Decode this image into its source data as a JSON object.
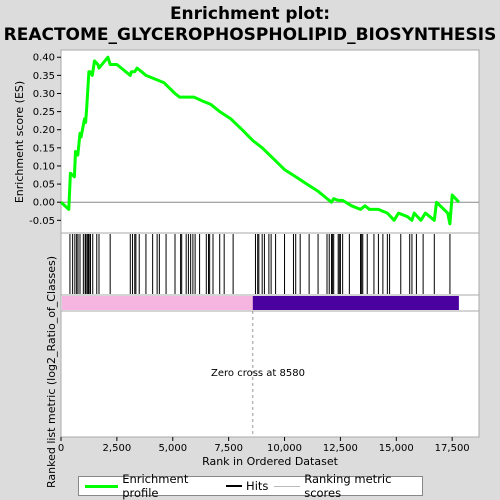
{
  "title_line1": "Enrichment plot:",
  "title_line2": "REACTOME_GLYCEROPHOSPHOLIPID_BIOSYNTHESIS",
  "zero_cross_label": "Zero cross at 8580",
  "colors": {
    "es_line": "#00ff00",
    "hits": "#000000",
    "pos_band": "#f5b5e0",
    "neg_band": "#4b00a0",
    "zero_line": "#808080",
    "background": "#ffffff",
    "page": "#dcdcdc"
  },
  "legend": {
    "enrichment_profile": "Enrichment profile",
    "hits": "Hits",
    "ranking_metric": "Ranking metric scores"
  },
  "chart_data": {
    "type": "line",
    "xlabel": "Rank in Ordered Dataset",
    "ylabel_top": "Enrichment score (ES)",
    "ylabel_bottom": "Ranked list metric (log2_Ratio_of_Classes)",
    "xlim": [
      0,
      18700
    ],
    "ylim": [
      -0.085,
      0.42
    ],
    "x_ticks": [
      0,
      2500,
      5000,
      7500,
      10000,
      12500,
      15000,
      17500
    ],
    "x_tick_labels": [
      "0",
      "2,500",
      "5,000",
      "7,500",
      "10,000",
      "12,500",
      "15,000",
      "17,500"
    ],
    "y_ticks": [
      -0.05,
      0.0,
      0.05,
      0.1,
      0.15,
      0.2,
      0.25,
      0.3,
      0.35,
      0.4
    ],
    "y_tick_labels": [
      "-0.05",
      "0.00",
      "0.05",
      "0.10",
      "0.15",
      "0.20",
      "0.25",
      "0.30",
      "0.35",
      "0.40"
    ],
    "zero_cross": 8580,
    "total_rank": 17800,
    "es_profile": {
      "x": [
        0,
        350,
        420,
        600,
        650,
        750,
        850,
        900,
        1050,
        1100,
        1150,
        1200,
        1250,
        1300,
        1400,
        1500,
        1650,
        1700,
        2100,
        2200,
        2500,
        3100,
        3150,
        3300,
        3400,
        3600,
        3800,
        4200,
        4600,
        5100,
        5300,
        5600,
        5800,
        5950,
        6300,
        6700,
        7100,
        7600,
        8100,
        8580,
        9000,
        9500,
        10000,
        10500,
        11000,
        11500,
        11900,
        12100,
        12200,
        12400,
        12600,
        13000,
        13400,
        13600,
        13800,
        14000,
        14200,
        14600,
        14900,
        15100,
        15500,
        15700,
        15800,
        16100,
        16300,
        16700,
        16800,
        17300,
        17400,
        17500,
        17800
      ],
      "y": [
        0.0,
        -0.02,
        0.08,
        0.07,
        0.14,
        0.13,
        0.19,
        0.18,
        0.23,
        0.22,
        0.26,
        0.31,
        0.36,
        0.36,
        0.35,
        0.39,
        0.38,
        0.37,
        0.4,
        0.38,
        0.38,
        0.35,
        0.36,
        0.36,
        0.37,
        0.36,
        0.35,
        0.34,
        0.33,
        0.3,
        0.29,
        0.29,
        0.29,
        0.29,
        0.28,
        0.27,
        0.25,
        0.23,
        0.2,
        0.17,
        0.15,
        0.12,
        0.09,
        0.07,
        0.05,
        0.03,
        0.01,
        0.0,
        0.01,
        0.005,
        0.005,
        -0.01,
        -0.02,
        -0.01,
        -0.02,
        -0.02,
        -0.02,
        -0.03,
        -0.05,
        -0.03,
        -0.04,
        -0.05,
        -0.03,
        -0.05,
        -0.03,
        -0.05,
        0.0,
        -0.03,
        -0.06,
        0.02,
        0.0
      ]
    },
    "hits": [
      400,
      520,
      620,
      700,
      760,
      850,
      1000,
      1080,
      1120,
      1180,
      1230,
      1260,
      1320,
      1420,
      1600,
      1700,
      2200,
      3100,
      3200,
      3300,
      3350,
      3500,
      3800,
      4100,
      4300,
      4400,
      4700,
      5100,
      5350,
      5400,
      5600,
      5700,
      5800,
      5900,
      6000,
      6200,
      6500,
      6600,
      6650,
      6800,
      7100,
      7300,
      7700,
      8700,
      8800,
      8850,
      9000,
      9100,
      9300,
      9400,
      9600,
      10000,
      10400,
      10500,
      10700,
      11100,
      11500,
      11900,
      12000,
      12100,
      12150,
      12200,
      12400,
      12450,
      12500,
      12600,
      12900,
      13400,
      13450,
      13500,
      13700,
      14000,
      14200,
      14400,
      14600,
      14700,
      15200,
      15600,
      15700,
      15900,
      16200,
      16700,
      17400
    ]
  }
}
